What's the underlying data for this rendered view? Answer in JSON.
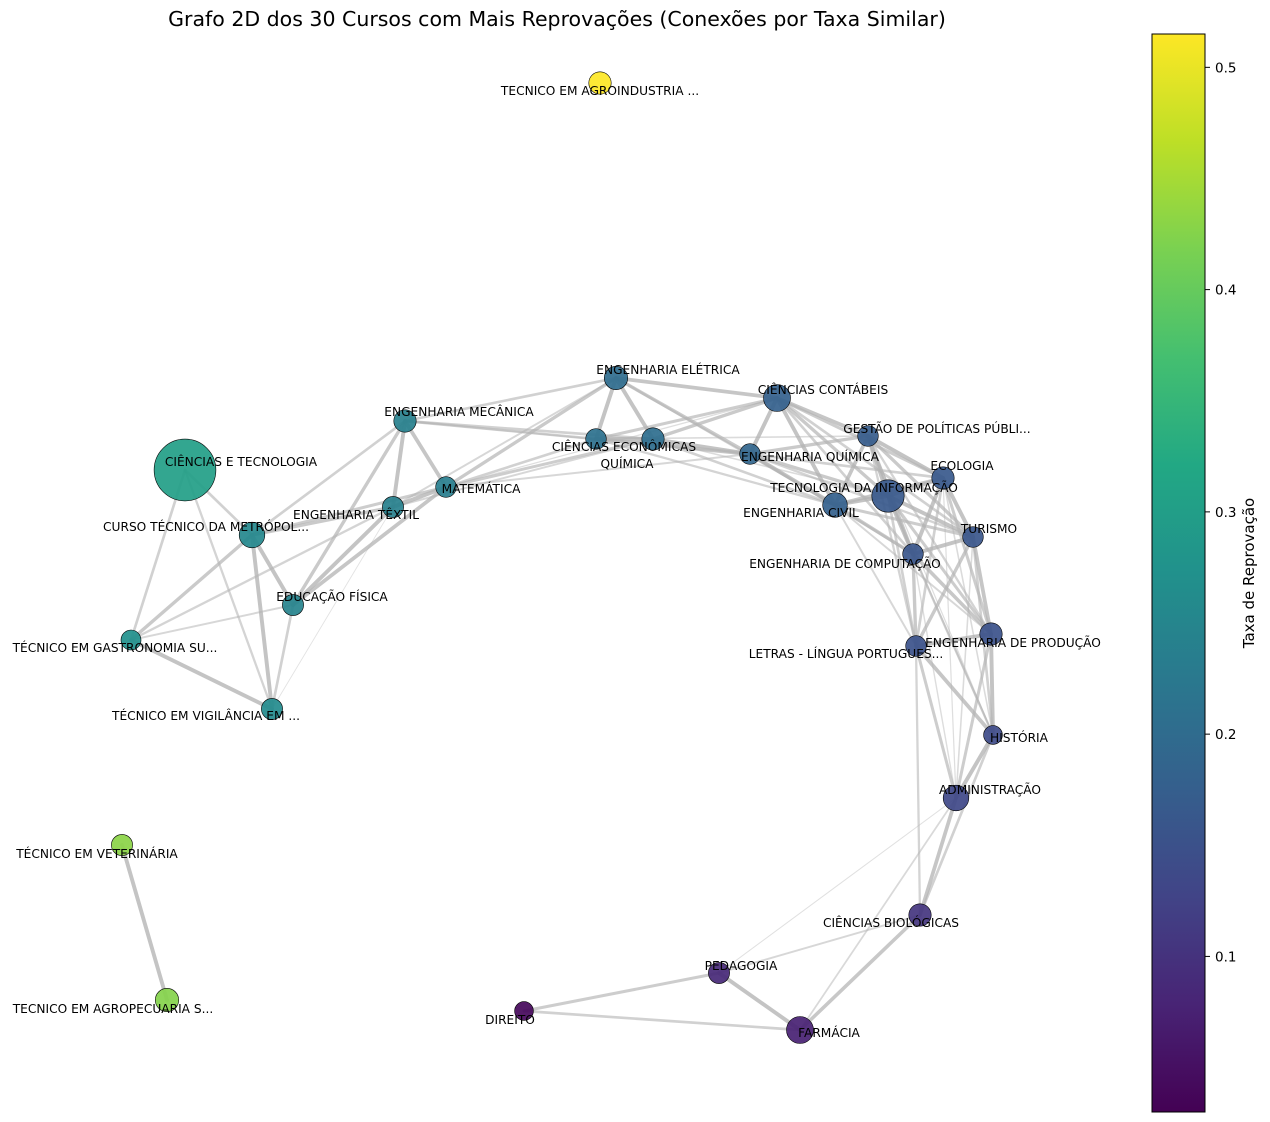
{
  "chart_data": {
    "type": "network",
    "title": "Grafo 2D dos 30 Cursos com Mais Reprovações (Conexões por Taxa Similar)",
    "colorbar": {
      "label": "Taxa de Reprovação",
      "colormap": "viridis",
      "range": [
        0.03,
        0.515
      ],
      "ticks": [
        "0.1",
        "0.2",
        "0.3",
        "0.4",
        "0.5"
      ],
      "tick_values": [
        0.1,
        0.2,
        0.3,
        0.4,
        0.5
      ]
    },
    "nodes": [
      {
        "id": "agroind",
        "label": "TECNICO EM AGROINDUSTRIA ...",
        "rate": 0.515,
        "weight": 1.0
      },
      {
        "id": "elet",
        "label": "ENGENHARIA ELÉTRICA",
        "rate": 0.2,
        "weight": 1.1
      },
      {
        "id": "cont",
        "label": "CIÊNCIAS CONTÁBEIS",
        "rate": 0.18,
        "weight": 1.45
      },
      {
        "id": "mec",
        "label": "ENGENHARIA MECÂNICA",
        "rate": 0.24,
        "weight": 1.0
      },
      {
        "id": "econ",
        "label": "CIÊNCIAS ECONÔMICAS",
        "rate": 0.21,
        "weight": 0.85
      },
      {
        "id": "quim",
        "label": "QUÍMICA",
        "rate": 0.205,
        "weight": 1.0
      },
      {
        "id": "engq",
        "label": "ENGENHARIA QUÍMICA",
        "rate": 0.19,
        "weight": 0.85
      },
      {
        "id": "gest",
        "label": "GESTÃO DE POLÍTICAS PÚBLI...",
        "rate": 0.17,
        "weight": 0.85
      },
      {
        "id": "ecol",
        "label": "ECOLOGIA",
        "rate": 0.165,
        "weight": 1.0
      },
      {
        "id": "cet",
        "label": "CIÊNCIAS E TECNOLOGIA",
        "rate": 0.3,
        "weight": 7.6
      },
      {
        "id": "mat",
        "label": "MATEMÁTICA",
        "rate": 0.235,
        "weight": 0.85
      },
      {
        "id": "ti",
        "label": "TECNOLOGIA DA INFORMAÇÃO",
        "rate": 0.165,
        "weight": 2.1
      },
      {
        "id": "civil",
        "label": "ENGENHARIA CIVIL",
        "rate": 0.18,
        "weight": 1.2
      },
      {
        "id": "text",
        "label": "ENGENHARIA TÊXTIL",
        "rate": 0.24,
        "weight": 0.9
      },
      {
        "id": "cursotec",
        "label": "CURSO TÉCNICO DA METRÓPOL...",
        "rate": 0.255,
        "weight": 1.3
      },
      {
        "id": "tur",
        "label": "TURISMO",
        "rate": 0.16,
        "weight": 0.85
      },
      {
        "id": "comp",
        "label": "ENGENHARIA DE COMPUTAÇÃO",
        "rate": 0.16,
        "weight": 0.85
      },
      {
        "id": "edfis",
        "label": "EDUCAÇÃO FÍSICA",
        "rate": 0.245,
        "weight": 0.9
      },
      {
        "id": "gastro",
        "label": "TÉCNICO EM GASTRONOMIA SU...",
        "rate": 0.27,
        "weight": 0.8
      },
      {
        "id": "letras",
        "label": "LETRAS - LÍNGUA PORTUGUES...",
        "rate": 0.15,
        "weight": 0.85
      },
      {
        "id": "prod",
        "label": "ENGENHARIA DE PRODUÇÃO",
        "rate": 0.15,
        "weight": 1.0
      },
      {
        "id": "vigil",
        "label": "TÉCNICO EM VIGILÂNCIA EM ...",
        "rate": 0.26,
        "weight": 0.9
      },
      {
        "id": "hist",
        "label": "HISTÓRIA",
        "rate": 0.14,
        "weight": 0.7
      },
      {
        "id": "adm",
        "label": "ADMINISTRAÇÃO",
        "rate": 0.135,
        "weight": 1.3
      },
      {
        "id": "vet",
        "label": "TÉCNICO EM VETERINÁRIA",
        "rate": 0.43,
        "weight": 0.9
      },
      {
        "id": "bio",
        "label": "CIÊNCIAS BIOLÓGICAS",
        "rate": 0.105,
        "weight": 1.0
      },
      {
        "id": "ped",
        "label": "PEDAGOGIA",
        "rate": 0.085,
        "weight": 0.9
      },
      {
        "id": "agropec",
        "label": "TECNICO EM AGROPECUARIA S...",
        "rate": 0.425,
        "weight": 1.1
      },
      {
        "id": "dir",
        "label": "DIREITO",
        "rate": 0.04,
        "weight": 0.7
      },
      {
        "id": "farm",
        "label": "FARMÁCIA",
        "rate": 0.075,
        "weight": 1.45
      }
    ],
    "edges": [
      {
        "source": "vet",
        "target": "agropec",
        "strength": 0.95
      },
      {
        "source": "dir",
        "target": "ped",
        "strength": 0.7
      },
      {
        "source": "dir",
        "target": "farm",
        "strength": 0.6
      },
      {
        "source": "ped",
        "target": "farm",
        "strength": 0.95
      },
      {
        "source": "ped",
        "target": "bio",
        "strength": 0.4
      },
      {
        "source": "ped",
        "target": "adm",
        "strength": 0.15
      },
      {
        "source": "farm",
        "target": "bio",
        "strength": 0.85
      },
      {
        "source": "farm",
        "target": "adm",
        "strength": 0.35
      },
      {
        "source": "bio",
        "target": "adm",
        "strength": 0.9
      },
      {
        "source": "bio",
        "target": "hist",
        "strength": 0.6
      },
      {
        "source": "bio",
        "target": "letras",
        "strength": 0.5
      },
      {
        "source": "adm",
        "target": "hist",
        "strength": 0.95
      },
      {
        "source": "adm",
        "target": "prod",
        "strength": 0.7
      },
      {
        "source": "adm",
        "target": "letras",
        "strength": 0.7
      },
      {
        "source": "adm",
        "target": "tur",
        "strength": 0.3
      },
      {
        "source": "adm",
        "target": "comp",
        "strength": 0.25
      },
      {
        "source": "adm",
        "target": "ecol",
        "strength": 0.2
      },
      {
        "source": "hist",
        "target": "prod",
        "strength": 0.95
      },
      {
        "source": "hist",
        "target": "letras",
        "strength": 0.9
      },
      {
        "source": "hist",
        "target": "tur",
        "strength": 0.6
      },
      {
        "source": "hist",
        "target": "comp",
        "strength": 0.5
      },
      {
        "source": "hist",
        "target": "ti",
        "strength": 0.35
      },
      {
        "source": "hist",
        "target": "ecol",
        "strength": 0.3
      },
      {
        "source": "hist",
        "target": "gest",
        "strength": 0.2
      },
      {
        "source": "letras",
        "target": "prod",
        "strength": 0.95
      },
      {
        "source": "letras",
        "target": "tur",
        "strength": 0.8
      },
      {
        "source": "letras",
        "target": "comp",
        "strength": 0.8
      },
      {
        "source": "letras",
        "target": "ti",
        "strength": 0.6
      },
      {
        "source": "letras",
        "target": "ecol",
        "strength": 0.6
      },
      {
        "source": "letras",
        "target": "gest",
        "strength": 0.5
      },
      {
        "source": "letras",
        "target": "civil",
        "strength": 0.4
      },
      {
        "source": "prod",
        "target": "tur",
        "strength": 0.9
      },
      {
        "source": "prod",
        "target": "comp",
        "strength": 0.85
      },
      {
        "source": "prod",
        "target": "ti",
        "strength": 0.7
      },
      {
        "source": "prod",
        "target": "ecol",
        "strength": 0.7
      },
      {
        "source": "prod",
        "target": "gest",
        "strength": 0.5
      },
      {
        "source": "prod",
        "target": "civil",
        "strength": 0.4
      },
      {
        "source": "tur",
        "target": "comp",
        "strength": 0.95
      },
      {
        "source": "tur",
        "target": "ti",
        "strength": 0.95
      },
      {
        "source": "tur",
        "target": "ecol",
        "strength": 0.95
      },
      {
        "source": "tur",
        "target": "gest",
        "strength": 0.8
      },
      {
        "source": "tur",
        "target": "civil",
        "strength": 0.7
      },
      {
        "source": "tur",
        "target": "engq",
        "strength": 0.5
      },
      {
        "source": "tur",
        "target": "cont",
        "strength": 0.6
      },
      {
        "source": "comp",
        "target": "ti",
        "strength": 0.95
      },
      {
        "source": "comp",
        "target": "ecol",
        "strength": 0.95
      },
      {
        "source": "comp",
        "target": "gest",
        "strength": 0.9
      },
      {
        "source": "comp",
        "target": "civil",
        "strength": 0.8
      },
      {
        "source": "comp",
        "target": "cont",
        "strength": 0.6
      },
      {
        "source": "comp",
        "target": "engq",
        "strength": 0.6
      },
      {
        "source": "ti",
        "target": "ecol",
        "strength": 0.95
      },
      {
        "source": "ti",
        "target": "gest",
        "strength": 0.95
      },
      {
        "source": "ti",
        "target": "civil",
        "strength": 0.95
      },
      {
        "source": "ti",
        "target": "cont",
        "strength": 0.8
      },
      {
        "source": "ti",
        "target": "engq",
        "strength": 0.8
      },
      {
        "source": "ti",
        "target": "quim",
        "strength": 0.3
      },
      {
        "source": "ecol",
        "target": "gest",
        "strength": 0.95
      },
      {
        "source": "ecol",
        "target": "civil",
        "strength": 0.85
      },
      {
        "source": "ecol",
        "target": "cont",
        "strength": 0.7
      },
      {
        "source": "ecol",
        "target": "engq",
        "strength": 0.6
      },
      {
        "source": "gest",
        "target": "civil",
        "strength": 0.9
      },
      {
        "source": "gest",
        "target": "cont",
        "strength": 0.9
      },
      {
        "source": "gest",
        "target": "engq",
        "strength": 0.8
      },
      {
        "source": "gest",
        "target": "econ",
        "strength": 0.3
      },
      {
        "source": "civil",
        "target": "cont",
        "strength": 0.95
      },
      {
        "source": "civil",
        "target": "engq",
        "strength": 0.95
      },
      {
        "source": "civil",
        "target": "quim",
        "strength": 0.6
      },
      {
        "source": "civil",
        "target": "econ",
        "strength": 0.5
      },
      {
        "source": "civil",
        "target": "elet",
        "strength": 0.5
      },
      {
        "source": "cont",
        "target": "engq",
        "strength": 0.95
      },
      {
        "source": "cont",
        "target": "quim",
        "strength": 0.8
      },
      {
        "source": "cont",
        "target": "econ",
        "strength": 0.7
      },
      {
        "source": "cont",
        "target": "elet",
        "strength": 0.9
      },
      {
        "source": "cont",
        "target": "mat",
        "strength": 0.2
      },
      {
        "source": "engq",
        "target": "quim",
        "strength": 0.95
      },
      {
        "source": "engq",
        "target": "econ",
        "strength": 0.9
      },
      {
        "source": "engq",
        "target": "elet",
        "strength": 0.8
      },
      {
        "source": "engq",
        "target": "mat",
        "strength": 0.4
      },
      {
        "source": "engq",
        "target": "mec",
        "strength": 0.3
      },
      {
        "source": "quim",
        "target": "econ",
        "strength": 0.95
      },
      {
        "source": "quim",
        "target": "elet",
        "strength": 0.95
      },
      {
        "source": "quim",
        "target": "mat",
        "strength": 0.7
      },
      {
        "source": "quim",
        "target": "mec",
        "strength": 0.6
      },
      {
        "source": "quim",
        "target": "text",
        "strength": 0.4
      },
      {
        "source": "econ",
        "target": "elet",
        "strength": 0.95
      },
      {
        "source": "econ",
        "target": "mat",
        "strength": 0.6
      },
      {
        "source": "econ",
        "target": "mec",
        "strength": 0.6
      },
      {
        "source": "elet",
        "target": "mec",
        "strength": 0.6
      },
      {
        "source": "elet",
        "target": "mat",
        "strength": 0.8
      },
      {
        "source": "elet",
        "target": "text",
        "strength": 0.4
      },
      {
        "source": "mec",
        "target": "mat",
        "strength": 0.9
      },
      {
        "source": "mec",
        "target": "text",
        "strength": 0.95
      },
      {
        "source": "mec",
        "target": "edfis",
        "strength": 0.8
      },
      {
        "source": "mec",
        "target": "cursotec",
        "strength": 0.6
      },
      {
        "source": "mat",
        "target": "text",
        "strength": 0.95
      },
      {
        "source": "mat",
        "target": "edfis",
        "strength": 0.9
      },
      {
        "source": "mat",
        "target": "cursotec",
        "strength": 0.7
      },
      {
        "source": "text",
        "target": "edfis",
        "strength": 0.95
      },
      {
        "source": "text",
        "target": "cursotec",
        "strength": 0.8
      },
      {
        "source": "text",
        "target": "gastro",
        "strength": 0.5
      },
      {
        "source": "text",
        "target": "vigil",
        "strength": 0.1
      },
      {
        "source": "edfis",
        "target": "cursotec",
        "strength": 0.95
      },
      {
        "source": "edfis",
        "target": "vigil",
        "strength": 0.6
      },
      {
        "source": "edfis",
        "target": "gastro",
        "strength": 0.4
      },
      {
        "source": "cursotec",
        "target": "vigil",
        "strength": 0.95
      },
      {
        "source": "cursotec",
        "target": "gastro",
        "strength": 0.8
      },
      {
        "source": "cursotec",
        "target": "cet",
        "strength": 0.6
      },
      {
        "source": "cet",
        "target": "gastro",
        "strength": 0.6
      },
      {
        "source": "cet",
        "target": "vigil",
        "strength": 0.5
      },
      {
        "source": "gastro",
        "target": "vigil",
        "strength": 0.95
      }
    ]
  }
}
